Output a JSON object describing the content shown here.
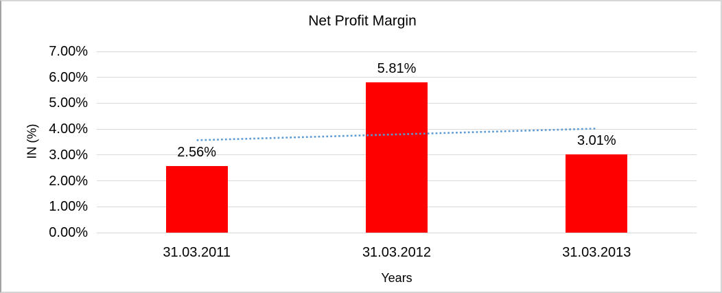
{
  "chart_data": {
    "type": "bar",
    "title": "Net Profit Margin",
    "xlabel": "Years",
    "ylabel": "IN (%)",
    "categories": [
      "31.03.2011",
      "31.03.2012",
      "31.03.2013"
    ],
    "values": [
      2.56,
      5.81,
      3.01
    ],
    "data_labels": [
      "2.56%",
      "5.81%",
      "3.01%"
    ],
    "ylim": [
      0,
      7
    ],
    "ytick_step": 1,
    "ytick_labels": [
      "0.00%",
      "1.00%",
      "2.00%",
      "3.00%",
      "4.00%",
      "5.00%",
      "6.00%",
      "7.00%"
    ],
    "grid": true,
    "legend": "none",
    "bar_color": "#ff0000",
    "gridline_color": "#d9d9d9",
    "text_color": "#000000",
    "trendline": {
      "type": "linear",
      "style": "dotted",
      "color": "#5b9bd5",
      "start_value": 3.57,
      "end_value": 4.02
    }
  }
}
